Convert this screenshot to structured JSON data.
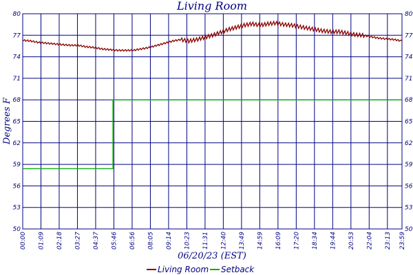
{
  "chart_data": {
    "type": "line",
    "title": "Living Room",
    "xlabel": "06/20/23 (EST)",
    "ylabel": "Degrees F",
    "y_ticks": [
      "50",
      "53",
      "56",
      "59",
      "62",
      "65",
      "68",
      "71",
      "74",
      "77",
      "80"
    ],
    "ylim": [
      50,
      80
    ],
    "x_ticks": [
      "00:00",
      "01:09",
      "02:18",
      "03:27",
      "04:37",
      "05:46",
      "06:56",
      "08:05",
      "09:14",
      "10:23",
      "11:31",
      "12:40",
      "13:49",
      "14:59",
      "16:09",
      "17:20",
      "18:34",
      "19:44",
      "20:53",
      "22:04",
      "23:13",
      "23:59"
    ],
    "xlim_minutes": [
      0,
      1439
    ],
    "grid": true,
    "legend_position": "bottom-center",
    "series": [
      {
        "name": "Living Room",
        "color": "#8b0000",
        "x_minutes": [
          0,
          30,
          60,
          90,
          120,
          150,
          180,
          210,
          240,
          270,
          300,
          330,
          360,
          390,
          420,
          450,
          480,
          510,
          540,
          570,
          600,
          630,
          660,
          690,
          720,
          750,
          780,
          810,
          840,
          870,
          900,
          930,
          960,
          990,
          1020,
          1050,
          1080,
          1110,
          1140,
          1170,
          1200,
          1230,
          1260,
          1290,
          1320,
          1350,
          1380,
          1410,
          1439
        ],
        "values": [
          76.3,
          76.2,
          76.0,
          75.9,
          75.8,
          75.7,
          75.6,
          75.6,
          75.4,
          75.3,
          75.1,
          75.0,
          74.9,
          74.9,
          74.9,
          75.1,
          75.3,
          75.6,
          75.9,
          76.2,
          76.4,
          76.2,
          76.4,
          76.7,
          77.0,
          77.4,
          77.8,
          78.1,
          78.4,
          78.6,
          78.4,
          78.6,
          78.7,
          78.5,
          78.4,
          78.2,
          78.0,
          77.8,
          77.6,
          77.5,
          77.5,
          77.3,
          77.1,
          77.0,
          76.8,
          76.6,
          76.5,
          76.4,
          76.2
        ]
      },
      {
        "name": "Setback",
        "color": "#00aa00",
        "x_minutes": [
          0,
          342,
          342,
          1439
        ],
        "values": [
          58.4,
          58.4,
          68.0,
          68.0
        ]
      }
    ]
  }
}
